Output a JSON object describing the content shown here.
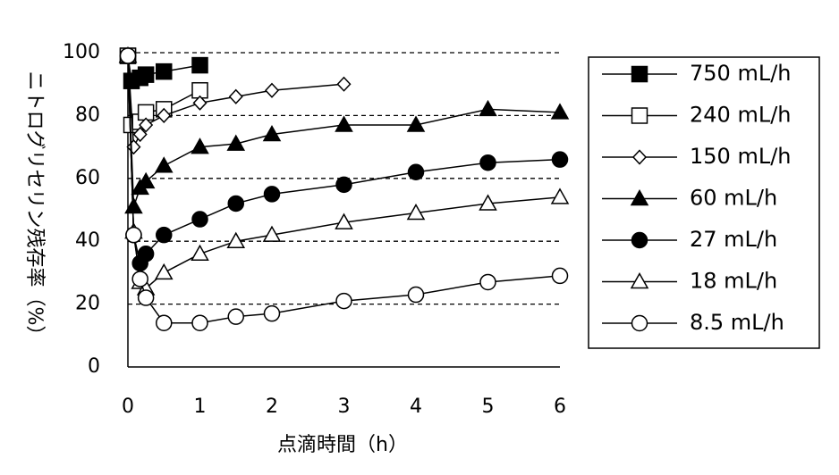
{
  "chart_data": {
    "type": "line",
    "xlabel": "点滴時間（h）",
    "ylabel": "ニトログリセリン残存率（%）",
    "xlim": [
      0,
      6
    ],
    "ylim": [
      0,
      100
    ],
    "xticks": [
      0,
      1,
      2,
      3,
      4,
      5,
      6
    ],
    "yticks": [
      0,
      20,
      40,
      60,
      80,
      100
    ],
    "grid": "dashed horizontal at 20, 40, 60, 80, 100",
    "legend_position": "right",
    "series": [
      {
        "name": "750 mL/h",
        "marker": "filled-square",
        "x": [
          0,
          0.05,
          0.17,
          0.25,
          0.5,
          1
        ],
        "y": [
          99,
          91,
          92,
          93,
          94,
          96
        ]
      },
      {
        "name": "240 mL/h",
        "marker": "open-square",
        "x": [
          0,
          0.05,
          0.17,
          0.25,
          0.5,
          1
        ],
        "y": [
          99,
          77,
          78,
          81,
          82,
          88
        ]
      },
      {
        "name": "150 mL/h",
        "marker": "open-diamond",
        "x": [
          0,
          0.08,
          0.17,
          0.25,
          0.5,
          1,
          1.5,
          2,
          3
        ],
        "y": [
          99,
          70,
          74,
          77,
          80,
          84,
          86,
          88,
          90
        ]
      },
      {
        "name": "60 mL/h",
        "marker": "filled-triangle",
        "x": [
          0,
          0.08,
          0.17,
          0.25,
          0.5,
          1,
          1.5,
          2,
          3,
          4,
          5,
          6
        ],
        "y": [
          99,
          51,
          57,
          59,
          64,
          70,
          71,
          74,
          77,
          77,
          82,
          81
        ]
      },
      {
        "name": "27 mL/h",
        "marker": "filled-circle",
        "x": [
          0,
          0.08,
          0.17,
          0.25,
          0.5,
          1,
          1.5,
          2,
          3,
          4,
          5,
          6
        ],
        "y": [
          99,
          42,
          33,
          36,
          42,
          47,
          52,
          55,
          58,
          62,
          65,
          66
        ]
      },
      {
        "name": "18 mL/h",
        "marker": "open-triangle",
        "x": [
          0,
          0.08,
          0.17,
          0.25,
          0.5,
          1,
          1.5,
          2,
          3,
          4,
          5,
          6
        ],
        "y": [
          99,
          43,
          27,
          25,
          30,
          36,
          40,
          42,
          46,
          49,
          52,
          54
        ]
      },
      {
        "name": "8.5 mL/h",
        "marker": "open-circle",
        "x": [
          0,
          0.08,
          0.17,
          0.25,
          0.5,
          1,
          1.5,
          2,
          3,
          4,
          5,
          6
        ],
        "y": [
          99,
          42,
          28,
          22,
          14,
          14,
          16,
          17,
          21,
          23,
          27,
          29
        ]
      }
    ]
  }
}
